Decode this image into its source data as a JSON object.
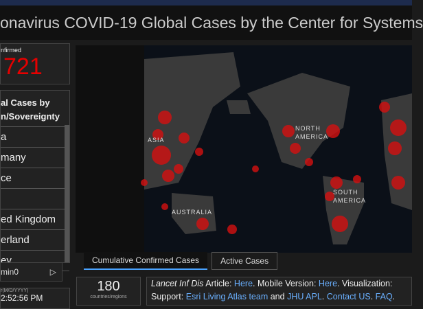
{
  "header": {
    "title": "onavirus COVID-19 Global Cases by the Center for Systems"
  },
  "confirmed": {
    "label": "nfirmed",
    "value": "721"
  },
  "list": {
    "title_line1": "al Cases by",
    "title_line2": "n/Sovereignty",
    "items": [
      "a",
      "many",
      "ce",
      "ed Kingdom",
      "erland",
      "ey"
    ],
    "pager": "min0"
  },
  "updated": {
    "label": "r(M/D/YYYY)",
    "time": "2:52:56 PM"
  },
  "map": {
    "labels": {
      "asia": "ASIA",
      "north_america": "NORTH\nAMERICA",
      "south_america": "SOUTH\nAMERICA",
      "australia": "AUSTRALIA"
    },
    "tabs": [
      "Cumulative Confirmed Cases",
      "Active Cases"
    ]
  },
  "countries": {
    "value": "180",
    "label": "countries/regions"
  },
  "footer": {
    "line1": [
      "Lancet Inf Dis",
      "Article:",
      "Here",
      ". Mobile Version:",
      "Here",
      ". Visualization:"
    ],
    "line2": [
      "Support:",
      "Esri Living Atlas team",
      "and",
      "JHU APL",
      ".",
      "Contact US",
      ".",
      "FAQ",
      "."
    ]
  }
}
